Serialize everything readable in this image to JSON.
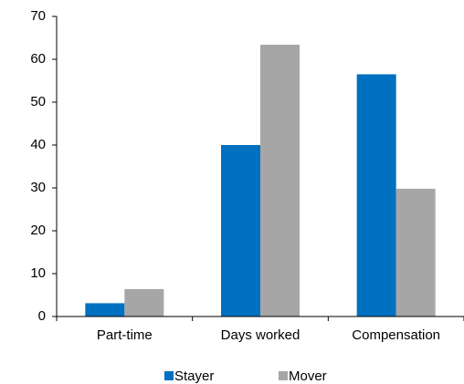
{
  "chart_data": {
    "type": "bar",
    "categories": [
      "Part-time",
      "Days worked",
      "Compensation"
    ],
    "series": [
      {
        "name": "Stayer",
        "color": "#0070c0",
        "values": [
          3.1,
          40,
          56.5
        ]
      },
      {
        "name": "Mover",
        "color": "#a6a6a6",
        "values": [
          6.4,
          63.4,
          29.8
        ]
      }
    ],
    "ylim": [
      0,
      70
    ],
    "yticks": [
      0,
      10,
      20,
      30,
      40,
      50,
      60,
      70
    ],
    "grid": false,
    "legend": "bottom"
  }
}
